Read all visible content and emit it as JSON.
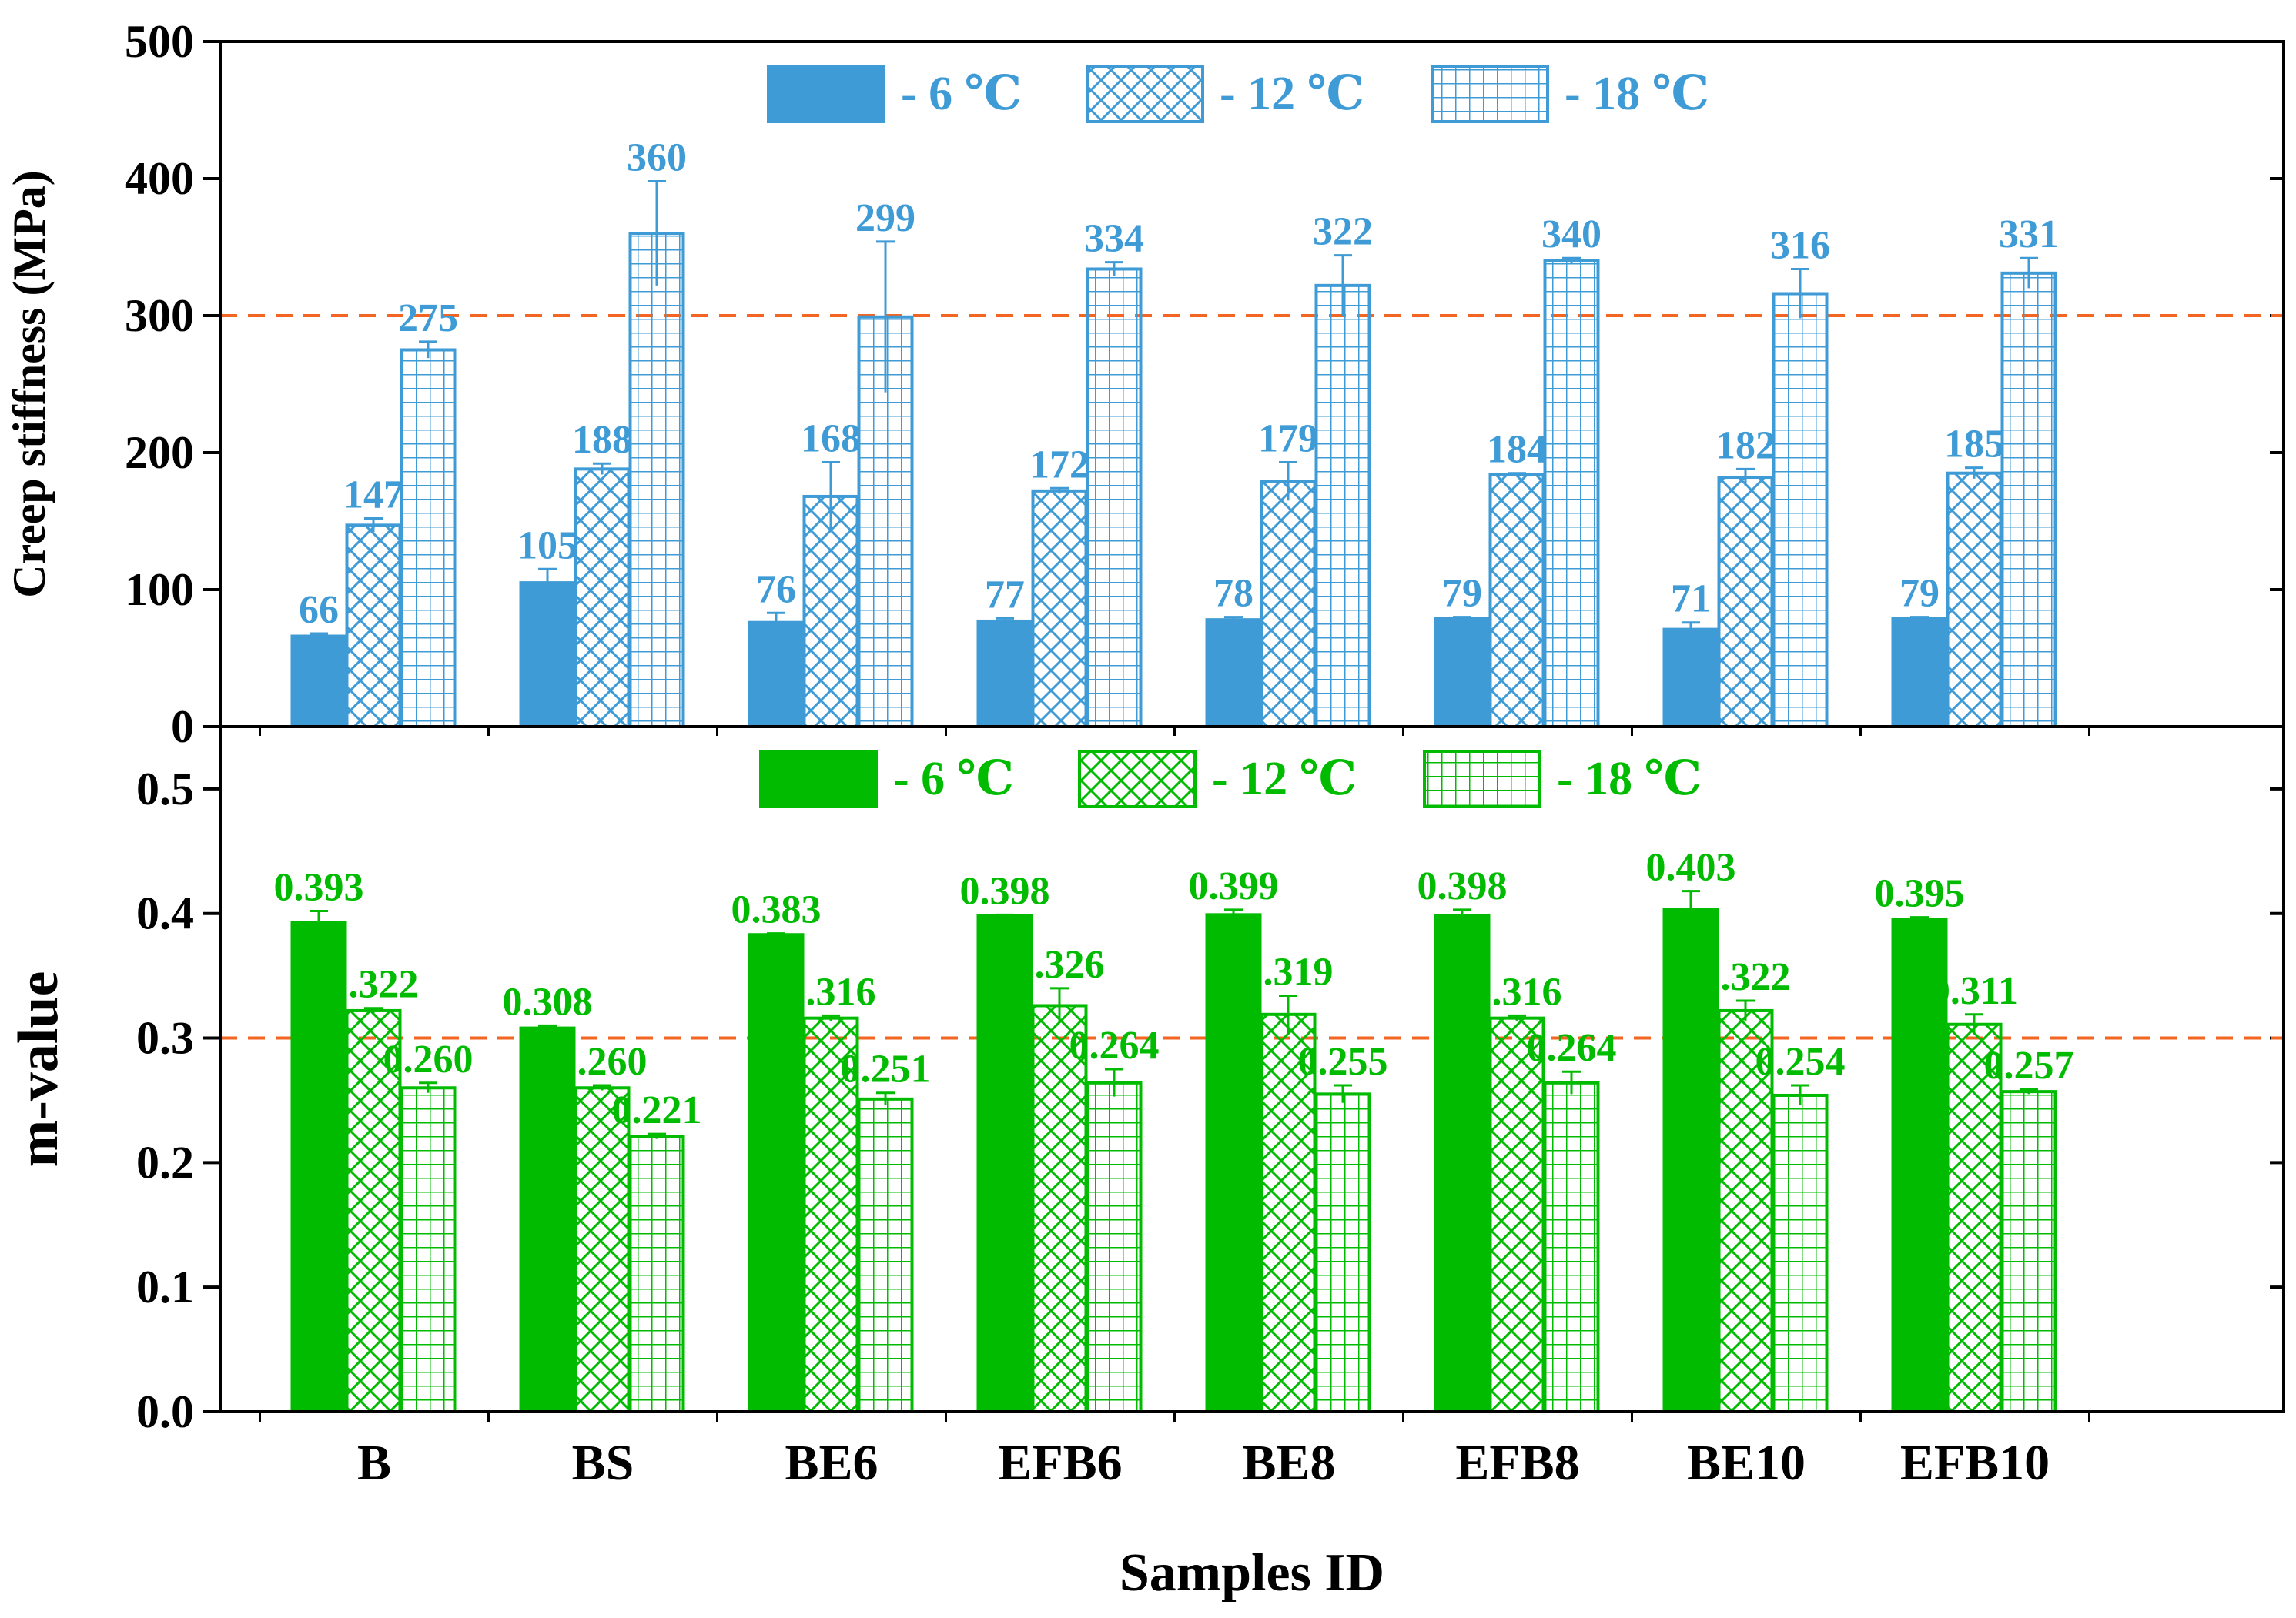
{
  "chart_data": [
    {
      "type": "bar",
      "ylabel": "Creep stiffness (MPa)",
      "ylim": [
        0,
        500
      ],
      "yticks": [
        "0",
        "100",
        "200",
        "300",
        "400",
        "500"
      ],
      "reference_line": 300,
      "categories": [
        "B",
        "BS",
        "BE6",
        "EFB6",
        "BE8",
        "EFB8",
        "BE10",
        "EFB10"
      ],
      "series": [
        {
          "name": "- 6 ℃",
          "pattern": "solid",
          "values": [
            66,
            105,
            76,
            77,
            78,
            79,
            71,
            79
          ],
          "errors": [
            2,
            10,
            7,
            2,
            2,
            1,
            5,
            1
          ],
          "labels": [
            "66",
            "105",
            "76",
            "77",
            "78",
            "79",
            "71",
            "79"
          ]
        },
        {
          "name": "- 12 ℃",
          "pattern": "crosshatch",
          "values": [
            147,
            188,
            168,
            172,
            179,
            184,
            182,
            185
          ],
          "errors": [
            5,
            4,
            25,
            2,
            14,
            1,
            6,
            4
          ],
          "labels": [
            "147",
            "188",
            "168",
            "172",
            "179",
            "184",
            "182",
            "185"
          ]
        },
        {
          "name": "- 18 ℃",
          "pattern": "grid",
          "values": [
            275,
            360,
            299,
            334,
            322,
            340,
            316,
            331
          ],
          "errors": [
            6,
            38,
            55,
            5,
            22,
            2,
            18,
            11
          ],
          "labels": [
            "275",
            "360",
            "299",
            "334",
            "322",
            "340",
            "316",
            "331"
          ]
        }
      ],
      "legend": "top-center",
      "color": "#3f9bd5"
    },
    {
      "type": "bar",
      "ylabel": "m-value",
      "xlabel": "Samples ID",
      "ylim": [
        0,
        0.55
      ],
      "yticks": [
        "0.0",
        "0.1",
        "0.2",
        "0.3",
        "0.4",
        "0.5"
      ],
      "reference_line": 0.3,
      "categories": [
        "B",
        "BS",
        "BE6",
        "EFB6",
        "BE8",
        "EFB8",
        "BE10",
        "EFB10"
      ],
      "series": [
        {
          "name": "- 6 ℃",
          "pattern": "solid",
          "values": [
            0.393,
            0.308,
            0.383,
            0.398,
            0.399,
            0.398,
            0.403,
            0.395
          ],
          "errors": [
            0.009,
            0.002,
            0.001,
            0.001,
            0.004,
            0.005,
            0.015,
            0.002
          ],
          "labels": [
            "0.393",
            "0.308",
            "0.383",
            "0.398",
            "0.399",
            "0.398",
            "0.403",
            "0.395"
          ]
        },
        {
          "name": "- 12 ℃",
          "pattern": "crosshatch",
          "values": [
            0.322,
            0.26,
            0.316,
            0.326,
            0.319,
            0.316,
            0.322,
            0.311
          ],
          "errors": [
            0.002,
            0.002,
            0.002,
            0.014,
            0.015,
            0.002,
            0.008,
            0.008
          ],
          "labels": [
            "0.322",
            "0.260",
            "0.316",
            "0.326",
            "0.319",
            "0.316",
            "0.322",
            "0.311"
          ]
        },
        {
          "name": "- 18 ℃",
          "pattern": "grid",
          "values": [
            0.26,
            0.221,
            0.251,
            0.264,
            0.255,
            0.264,
            0.254,
            0.257
          ],
          "errors": [
            0.004,
            0.002,
            0.005,
            0.011,
            0.007,
            0.009,
            0.008,
            0.002
          ],
          "labels": [
            "0.260",
            "0.221",
            "0.251",
            "0.264",
            "0.255",
            "0.264",
            "0.254",
            "0.257"
          ]
        }
      ],
      "legend": "top-center",
      "color": "#00bb00"
    }
  ],
  "colors": {
    "reference_line": "#f26522",
    "axis": "#000000"
  }
}
